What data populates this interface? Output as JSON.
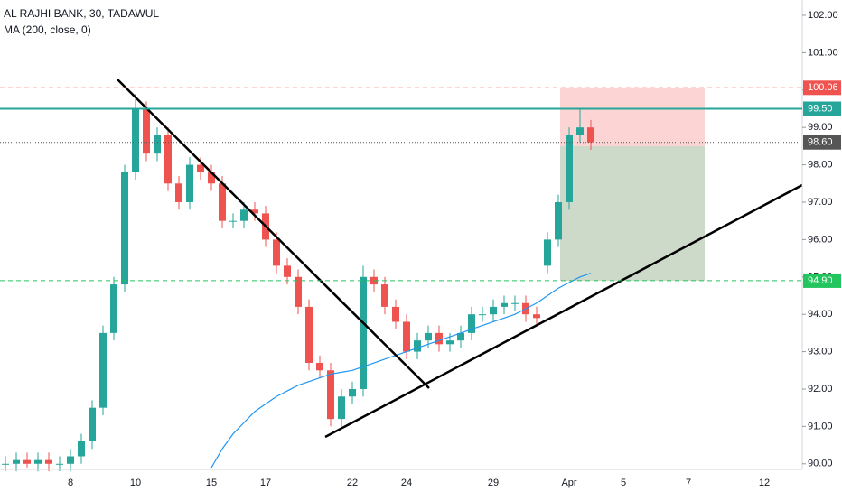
{
  "chart_data": {
    "type": "candlestick",
    "title": "AL RAJHI BANK, 30, TADAWUL",
    "categories": [
      null,
      null,
      null,
      null,
      null,
      null,
      "8",
      null,
      null,
      null,
      null,
      null,
      "10",
      null,
      null,
      null,
      null,
      null,
      null,
      "15",
      null,
      null,
      null,
      null,
      "17",
      null,
      null,
      null,
      null,
      null,
      null,
      null,
      "22",
      null,
      null,
      null,
      null,
      "24",
      null,
      null,
      null,
      null,
      null,
      null,
      null,
      "29",
      null,
      null,
      null,
      null,
      null,
      null,
      "Apr",
      null,
      null,
      null,
      null,
      "5",
      null,
      null,
      null,
      null,
      null,
      "7",
      null,
      null,
      null,
      null,
      null,
      null,
      "12",
      null,
      null,
      null
    ],
    "open": [
      90.0,
      90.0,
      90.1,
      90.0,
      90.1,
      90.0,
      90.0,
      90.2,
      90.6,
      91.5,
      93.5,
      94.8,
      97.8,
      99.5,
      98.3,
      98.8,
      97.5,
      97.0,
      98.0,
      97.8,
      97.5,
      96.5,
      96.5,
      96.8,
      96.7,
      96.0,
      95.3,
      95.0,
      94.2,
      92.7,
      92.5,
      91.2,
      91.8,
      92.0,
      95.0,
      94.8,
      94.2,
      93.8,
      93.0,
      93.3,
      93.5,
      93.2,
      93.3,
      93.5,
      94.0,
      94.0,
      94.2,
      94.3,
      94.3,
      94.0,
      95.3,
      96.0,
      97.0,
      98.8,
      99.0,
      null,
      null,
      null,
      null,
      null,
      null,
      null,
      null,
      null,
      null,
      null,
      null,
      null,
      null,
      null,
      null,
      null,
      null,
      null
    ],
    "high": [
      90.2,
      90.3,
      90.3,
      90.3,
      90.3,
      90.2,
      90.4,
      90.8,
      91.7,
      93.7,
      95.0,
      98.0,
      99.9,
      99.7,
      99.0,
      99.0,
      97.7,
      98.2,
      98.2,
      98.0,
      97.7,
      96.7,
      97.0,
      97.0,
      96.9,
      96.2,
      95.5,
      95.2,
      94.4,
      92.9,
      92.7,
      92.0,
      92.2,
      95.3,
      95.2,
      95.0,
      94.4,
      94.0,
      93.5,
      93.7,
      93.7,
      93.5,
      93.7,
      94.2,
      94.2,
      94.4,
      94.5,
      94.5,
      94.5,
      94.2,
      96.2,
      97.2,
      99.0,
      99.5,
      99.2,
      null,
      null,
      null,
      null,
      null,
      null,
      null,
      null,
      null,
      null,
      null,
      null,
      null,
      null,
      null,
      null,
      null,
      null,
      null
    ],
    "low": [
      89.8,
      89.8,
      89.9,
      89.8,
      89.8,
      89.8,
      89.8,
      90.0,
      90.4,
      91.3,
      93.3,
      94.6,
      97.6,
      98.1,
      98.1,
      97.3,
      96.8,
      96.8,
      97.6,
      97.3,
      96.3,
      96.3,
      96.3,
      96.5,
      95.8,
      95.1,
      94.8,
      94.0,
      92.5,
      92.3,
      91.0,
      91.0,
      91.6,
      91.8,
      94.6,
      94.0,
      93.6,
      92.8,
      92.8,
      93.1,
      93.0,
      93.0,
      93.1,
      93.3,
      93.8,
      93.8,
      94.0,
      94.1,
      93.8,
      93.7,
      95.1,
      95.8,
      96.8,
      98.6,
      98.4,
      null,
      null,
      null,
      null,
      null,
      null,
      null,
      null,
      null,
      null,
      null,
      null,
      null,
      null,
      null,
      null,
      null,
      null,
      null
    ],
    "close": [
      90.0,
      90.1,
      90.0,
      90.1,
      90.0,
      90.0,
      90.2,
      90.6,
      91.5,
      93.5,
      94.8,
      97.8,
      99.5,
      98.3,
      98.8,
      97.5,
      97.0,
      98.0,
      97.8,
      97.5,
      96.5,
      96.5,
      96.8,
      96.7,
      96.0,
      95.3,
      95.0,
      94.2,
      92.7,
      92.5,
      91.2,
      91.8,
      92.0,
      95.0,
      94.8,
      94.2,
      93.8,
      93.0,
      93.3,
      93.5,
      93.2,
      93.3,
      93.5,
      94.0,
      94.0,
      94.2,
      94.3,
      94.3,
      94.0,
      93.9,
      96.0,
      97.0,
      98.8,
      99.0,
      98.6,
      null,
      null,
      null,
      null,
      null,
      null,
      null,
      null,
      null,
      null,
      null,
      null,
      null,
      null,
      null,
      null,
      null,
      null,
      null
    ],
    "up_color": "#26a69a",
    "down_color": "#ef5350",
    "ma": {
      "name": "MA (200, close, 0)",
      "color": "#2196f3",
      "values": [
        null,
        null,
        null,
        null,
        null,
        null,
        null,
        null,
        null,
        null,
        null,
        null,
        null,
        null,
        null,
        null,
        null,
        null,
        null,
        89.9,
        90.4,
        90.8,
        91.1,
        91.4,
        91.6,
        91.8,
        91.95,
        92.1,
        92.2,
        92.3,
        92.4,
        92.45,
        92.5,
        92.6,
        92.7,
        92.8,
        92.9,
        93.0,
        93.1,
        93.2,
        93.3,
        93.4,
        93.5,
        93.6,
        93.7,
        93.8,
        93.9,
        94.0,
        94.15,
        94.3,
        94.5,
        94.7,
        94.85,
        95.0,
        95.1,
        null,
        null,
        null,
        null,
        null,
        null,
        null,
        null,
        null,
        null,
        null,
        null,
        null,
        null,
        null,
        null,
        null,
        null,
        null
      ]
    },
    "levels": [
      {
        "value": 100.06,
        "label": "100.06",
        "color": "#ef5350",
        "style": "dashed"
      },
      {
        "value": 99.5,
        "label": "99.50",
        "color": "#26a69a",
        "style": "solid"
      },
      {
        "value": 98.6,
        "label": "98.60",
        "color": "#555555",
        "style": "dotted"
      },
      {
        "value": 94.9,
        "label": "94.90",
        "color": "#22c55e",
        "style": "dashed"
      }
    ],
    "ylim": [
      89.85,
      102.41
    ],
    "yticks": [
      {
        "value": 90,
        "label": "90.00"
      },
      {
        "value": 91,
        "label": "91.00"
      },
      {
        "value": 92,
        "label": "92.00"
      },
      {
        "value": 93,
        "label": "93.00"
      },
      {
        "value": 94,
        "label": "94.00"
      },
      {
        "value": 95,
        "label": "95.00"
      },
      {
        "value": 96,
        "label": "96.00"
      },
      {
        "value": 97,
        "label": "97.00"
      },
      {
        "value": 98,
        "label": "98.00"
      },
      {
        "value": 99,
        "label": "99.00"
      },
      {
        "value": 100,
        "label": "100.00"
      },
      {
        "value": 101,
        "label": "101.00"
      },
      {
        "value": 102,
        "label": "102.00"
      }
    ]
  }
}
